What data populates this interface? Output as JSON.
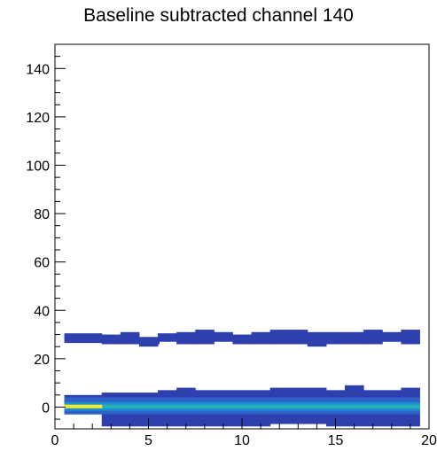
{
  "chart_data": {
    "type": "heatmap",
    "title": "Baseline subtracted channel 140",
    "xlabel": "",
    "ylabel": "",
    "xlim": [
      0,
      20
    ],
    "ylim": [
      -9,
      150
    ],
    "x_ticks": [
      0,
      5,
      10,
      15,
      20
    ],
    "y_ticks": [
      0,
      20,
      40,
      60,
      80,
      100,
      120,
      140
    ],
    "grid": false,
    "legend": "none",
    "colors": {
      "low": "#2e3fae",
      "mid_low": "#2f62c8",
      "mid": "#1c8fd6",
      "mid_high": "#2ab3b7",
      "high": "#f4ec2a",
      "frame": "#000000"
    },
    "bands": [
      {
        "name": "upper",
        "x_start": 0.5,
        "x_end": 19.5,
        "segments": [
          {
            "x0": 0.5,
            "x1": 2.5,
            "y0": 26.5,
            "y1": 30.5
          },
          {
            "x0": 2.5,
            "x1": 3.5,
            "y0": 26,
            "y1": 30
          },
          {
            "x0": 3.5,
            "x1": 4.5,
            "y0": 26,
            "y1": 31
          },
          {
            "x0": 4.5,
            "x1": 5.5,
            "y0": 25,
            "y1": 29
          },
          {
            "x0": 5.5,
            "x1": 6.5,
            "y0": 26,
            "y1": 30.5
          },
          {
            "x0": 6.5,
            "x1": 7.5,
            "y0": 26,
            "y1": 31
          },
          {
            "x0": 7.5,
            "x1": 8.5,
            "y0": 26,
            "y1": 32
          },
          {
            "x0": 8.5,
            "x1": 9.5,
            "y0": 27,
            "y1": 31
          },
          {
            "x0": 9.5,
            "x1": 10.5,
            "y0": 26,
            "y1": 30
          },
          {
            "x0": 10.5,
            "x1": 11.5,
            "y0": 26,
            "y1": 31
          },
          {
            "x0": 11.5,
            "x1": 13.5,
            "y0": 26,
            "y1": 32
          },
          {
            "x0": 13.5,
            "x1": 14.5,
            "y0": 25,
            "y1": 31
          },
          {
            "x0": 14.5,
            "x1": 16.5,
            "y0": 26,
            "y1": 31
          },
          {
            "x0": 16.5,
            "x1": 17.5,
            "y0": 26,
            "y1": 32
          },
          {
            "x0": 17.5,
            "x1": 18.5,
            "y0": 27,
            "y1": 31
          },
          {
            "x0": 18.5,
            "x1": 19.5,
            "y0": 26,
            "y1": 32
          }
        ],
        "holes": [
          {
            "x0": 5.5,
            "x1": 6.5,
            "y0": 25.5,
            "y1": 27
          }
        ]
      },
      {
        "name": "lower",
        "segments": [
          {
            "x0": 0.5,
            "x1": 2.5,
            "y0": -3,
            "y1": 5,
            "level": "low"
          },
          {
            "x0": 2.5,
            "x1": 5.5,
            "y0": -8,
            "y1": 6,
            "level": "low"
          },
          {
            "x0": 5.5,
            "x1": 6.5,
            "y0": -8,
            "y1": 7,
            "level": "low"
          },
          {
            "x0": 6.5,
            "x1": 7.5,
            "y0": -8,
            "y1": 8,
            "level": "low"
          },
          {
            "x0": 7.5,
            "x1": 11.5,
            "y0": -8,
            "y1": 7,
            "level": "low"
          },
          {
            "x0": 11.5,
            "x1": 14.5,
            "y0": -7,
            "y1": 8,
            "level": "low"
          },
          {
            "x0": 14.5,
            "x1": 15.5,
            "y0": -8,
            "y1": 7,
            "level": "low"
          },
          {
            "x0": 15.5,
            "x1": 16.5,
            "y0": -8,
            "y1": 9,
            "level": "low"
          },
          {
            "x0": 16.5,
            "x1": 18.5,
            "y0": -8,
            "y1": 7,
            "level": "low"
          },
          {
            "x0": 18.5,
            "x1": 19.5,
            "y0": -8,
            "y1": 8,
            "level": "low"
          },
          {
            "x0": 0.5,
            "x1": 19.5,
            "y0": -3,
            "y1": 4,
            "level": "mid_low"
          },
          {
            "x0": 0.5,
            "x1": 19.5,
            "y0": -1.5,
            "y1": 2,
            "level": "mid"
          },
          {
            "x0": 0.5,
            "x1": 19.5,
            "y0": -0.5,
            "y1": 1,
            "level": "mid_high"
          },
          {
            "x0": 0.5,
            "x1": 2.5,
            "y0": -0.5,
            "y1": 1,
            "level": "high"
          }
        ]
      }
    ]
  }
}
